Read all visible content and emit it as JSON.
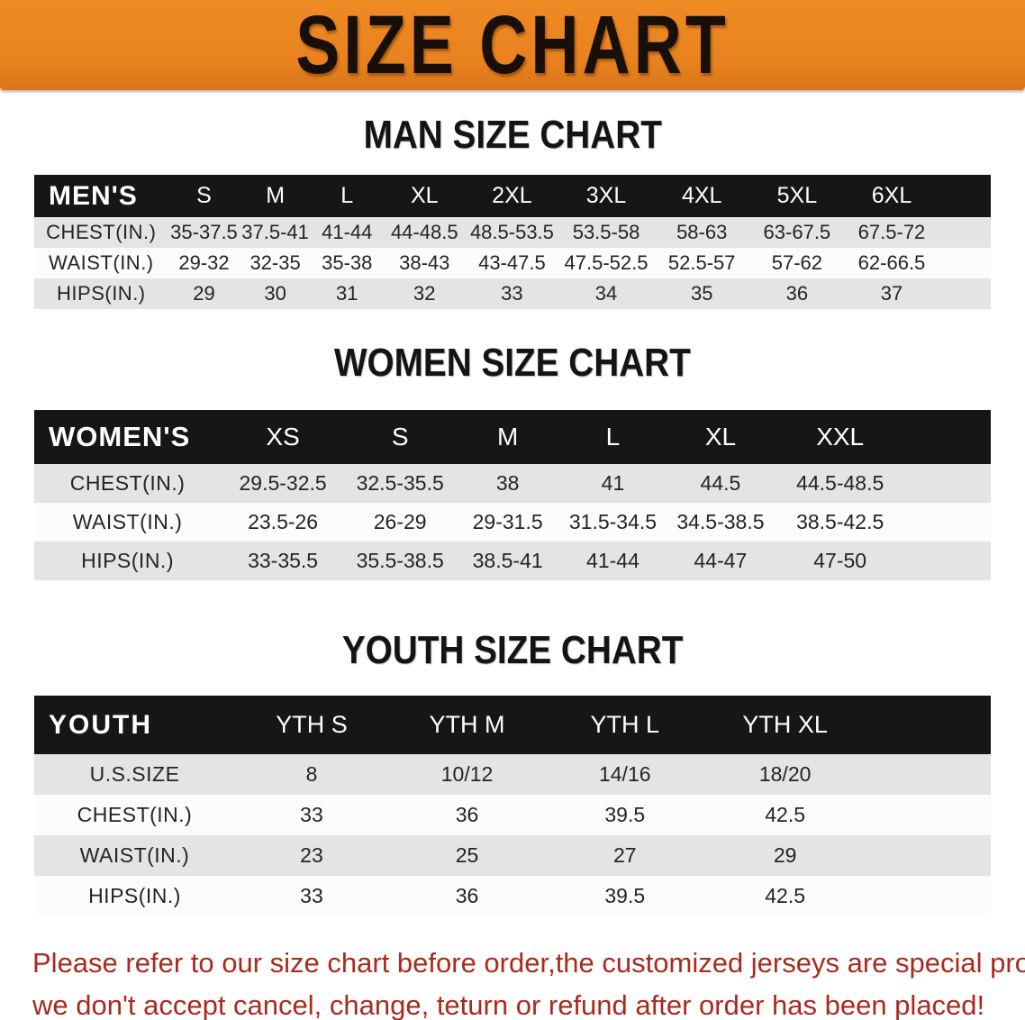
{
  "banner": {
    "title": "SIZE CHART"
  },
  "colors": {
    "banner_orange": "#e8821e",
    "table_header_black": "#161616",
    "row_stripe_gray": "#e4e4e6",
    "footer_red": "#aa2a1e"
  },
  "sections": [
    {
      "heading": "MAN SIZE CHART",
      "table": {
        "header_label": "MEN'S",
        "columns": [
          "S",
          "M",
          "L",
          "XL",
          "2XL",
          "3XL",
          "4XL",
          "5XL",
          "6XL"
        ],
        "rows": [
          {
            "label": "CHEST(IN.)",
            "values": [
              "35-37.5",
              "37.5-41",
              "41-44",
              "44-48.5",
              "48.5-53.5",
              "53.5-58",
              "58-63",
              "63-67.5",
              "67.5-72"
            ]
          },
          {
            "label": "WAIST(IN.)",
            "values": [
              "29-32",
              "32-35",
              "35-38",
              "38-43",
              "43-47.5",
              "47.5-52.5",
              "52.5-57",
              "57-62",
              "62-66.5"
            ]
          },
          {
            "label": "HIPS(IN.)",
            "values": [
              "29",
              "30",
              "31",
              "32",
              "33",
              "34",
              "35",
              "36",
              "37"
            ]
          }
        ]
      }
    },
    {
      "heading": "WOMEN SIZE CHART",
      "table": {
        "header_label": "WOMEN'S",
        "columns": [
          "XS",
          "S",
          "M",
          "L",
          "XL",
          "XXL"
        ],
        "rows": [
          {
            "label": "CHEST(IN.)",
            "values": [
              "29.5-32.5",
              "32.5-35.5",
              "38",
              "41",
              "44.5",
              "44.5-48.5"
            ]
          },
          {
            "label": "WAIST(IN.)",
            "values": [
              "23.5-26",
              "26-29",
              "29-31.5",
              "31.5-34.5",
              "34.5-38.5",
              "38.5-42.5"
            ]
          },
          {
            "label": "HIPS(IN.)",
            "values": [
              "33-35.5",
              "35.5-38.5",
              "38.5-41",
              "41-44",
              "44-47",
              "47-50"
            ]
          }
        ]
      }
    },
    {
      "heading": "YOUTH SIZE CHART",
      "table": {
        "header_label": "YOUTH",
        "columns": [
          "YTH S",
          "YTH M",
          "YTH L",
          "YTH XL"
        ],
        "rows": [
          {
            "label": "U.S.SIZE",
            "values": [
              "8",
              "10/12",
              "14/16",
              "18/20"
            ]
          },
          {
            "label": "CHEST(IN.)",
            "values": [
              "33",
              "36",
              "39.5",
              "42.5"
            ]
          },
          {
            "label": "WAIST(IN.)",
            "values": [
              "23",
              "25",
              "27",
              "29"
            ]
          },
          {
            "label": "HIPS(IN.)",
            "values": [
              "33",
              "36",
              "39.5",
              "42.5"
            ]
          }
        ]
      }
    }
  ],
  "footer": {
    "line1": "Please refer to our size chart before order,the customized jerseys are special products,",
    "line2": "we don't accept cancel, change, teturn or refund after order has been placed!"
  }
}
